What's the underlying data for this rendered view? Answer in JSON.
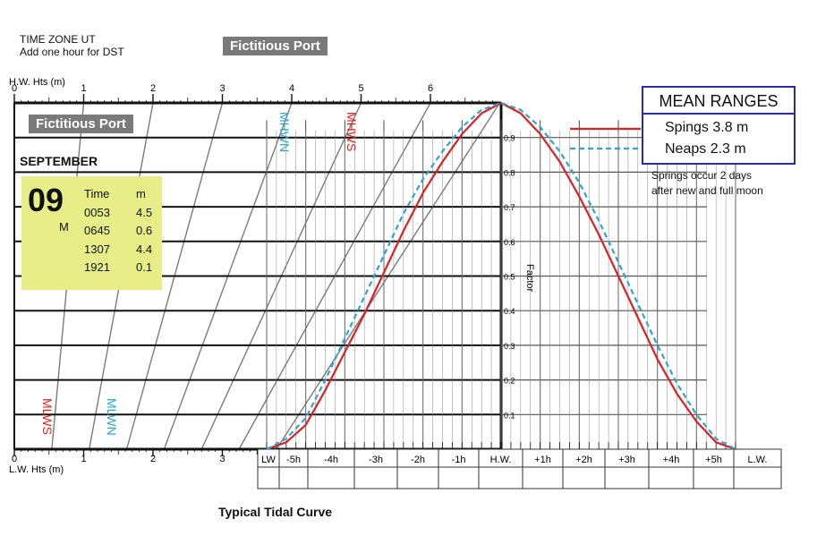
{
  "header": {
    "tz_line1": "TIME ZONE UT",
    "tz_line2": "Add one hour for DST",
    "port_title": "Fictitious Port"
  },
  "panel": {
    "port_label": "Fictitious Port",
    "month": "SEPTEMBER",
    "day_number": "09",
    "day_letter": "M",
    "col_time": "Time",
    "col_m": "m",
    "tides": [
      {
        "time": "0053",
        "height": "4.5"
      },
      {
        "time": "0645",
        "height": "0.6"
      },
      {
        "time": "1307",
        "height": "4.4"
      },
      {
        "time": "1921",
        "height": "0.1"
      }
    ]
  },
  "mean_ranges": {
    "title": "MEAN RANGES",
    "springs": "Spings 3.8 m",
    "neaps": "Neaps 2.3 m",
    "note_line1": "Springs occur 2 days",
    "note_line2": "after new and full moon"
  },
  "chart_data": {
    "type": "line",
    "caption": "Typical Tidal Curve",
    "hw_axis_label": "H.W. Hts (m)",
    "lw_axis_label": "L.W. Hts (m)",
    "hw_ticks": [
      "0",
      "1",
      "2",
      "3",
      "4",
      "5",
      "6"
    ],
    "lw_ticks": [
      "0",
      "1",
      "2",
      "3"
    ],
    "factor_label": "Factor",
    "factor_ticks": [
      "0.1",
      "0.2",
      "0.3",
      "0.4",
      "0.5",
      "0.6",
      "0.7",
      "0.8",
      "0.9"
    ],
    "time_labels": [
      "LW",
      "-5h",
      "-4h",
      "-3h",
      "-2h",
      "-1h",
      "H.W.",
      "+1h",
      "+2h",
      "+3h",
      "+4h",
      "+5h",
      "L.W."
    ],
    "line_labels": {
      "mhws": "MHWS",
      "mhwn": "MHWN",
      "mlws": "MLWS",
      "mlwn": "MLWN"
    },
    "x": [
      -6,
      -5.5,
      -5,
      -4.5,
      -4,
      -3.5,
      -3,
      -2.5,
      -2,
      -1.5,
      -1,
      -0.5,
      0,
      0.5,
      1,
      1.5,
      2,
      2.5,
      3,
      3.5,
      4,
      4.5,
      5,
      5.5,
      6
    ],
    "series": [
      {
        "name": "Springs",
        "color": "#e02020",
        "dash": false,
        "values": [
          0,
          0.02,
          0.07,
          0.17,
          0.28,
          0.39,
          0.51,
          0.63,
          0.74,
          0.83,
          0.91,
          0.97,
          1.0,
          0.97,
          0.91,
          0.83,
          0.73,
          0.62,
          0.5,
          0.38,
          0.26,
          0.16,
          0.08,
          0.02,
          0
        ]
      },
      {
        "name": "Neaps",
        "color": "#2aa5d6",
        "dash": true,
        "values": [
          0,
          0.03,
          0.09,
          0.2,
          0.32,
          0.44,
          0.56,
          0.68,
          0.78,
          0.86,
          0.93,
          0.98,
          1.0,
          0.98,
          0.93,
          0.86,
          0.77,
          0.66,
          0.54,
          0.42,
          0.3,
          0.19,
          0.1,
          0.03,
          0
        ]
      }
    ],
    "ylim": [
      0,
      1
    ]
  }
}
